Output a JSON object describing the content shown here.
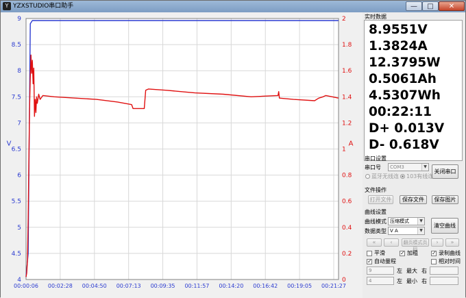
{
  "window": {
    "title": "YZXSTUDIO串口助手",
    "icon": "app-logo-icon",
    "minimize": "—",
    "maximize": "□",
    "close": "✕"
  },
  "realtime": {
    "section_title": "实时数据",
    "lines": [
      "8.9551V",
      "1.3824A",
      "12.3795W",
      "0.5061Ah",
      "4.5307Wh",
      "00:22:11",
      "D+  0.013V",
      "D-   0.618V"
    ]
  },
  "serial": {
    "section_title": "串口设置",
    "port_label": "串口号",
    "port_value": "COM3",
    "close_button": "关闭串口",
    "radio_bt": "蓝牙无线连",
    "radio_103": "103有线连"
  },
  "file": {
    "section_title": "文件操作",
    "open": "打开文件",
    "save": "保存文件",
    "save_image": "保存图片"
  },
  "curve": {
    "section_title": "曲线设置",
    "mode_label": "曲线模式",
    "mode_value": "压缩模式",
    "type_label": "数据类型",
    "type_value": "V A",
    "clear_button": "清空曲线",
    "nav_first": "«",
    "nav_prev": "‹",
    "nav_page": "翻页模式页码",
    "nav_next": "›",
    "nav_last": "»",
    "smooth": "平滑",
    "bold": "加粗",
    "record": "录制曲线",
    "auto_range": "自动量程",
    "relative_time": "相对时间",
    "left_min_value": "9",
    "left_label": "左",
    "max_label": "最大",
    "right_label": "右",
    "left_max_value": "4",
    "min_label": "最小"
  },
  "chart_data": {
    "type": "line",
    "ylabel_left": "V",
    "ylabel_right": "A",
    "ylim_left": [
      4,
      9
    ],
    "ylim_right": [
      0,
      2
    ],
    "yticks_left": [
      "4",
      "4.5",
      "5",
      "5.5",
      "6",
      "6.5",
      "7",
      "7.5",
      "8",
      "8.5",
      "9"
    ],
    "yticks_right": [
      "0",
      "0.2",
      "0.4",
      "0.6",
      "0.8",
      "1",
      "1.2",
      "1.4",
      "1.6",
      "1.8",
      "2"
    ],
    "xticks": [
      "00:00:06",
      "00:02:28",
      "00:04:50",
      "00:07:13",
      "00:09:35",
      "00:11:57",
      "00:14:20",
      "00:16:42",
      "00:19:05",
      "00:21:27"
    ],
    "series": [
      {
        "axis": "left",
        "color": "#2a3ad0",
        "points": [
          [
            0,
            4.05
          ],
          [
            0.15,
            4.5
          ],
          [
            0.3,
            8.9
          ],
          [
            0.45,
            8.96
          ],
          [
            22.2,
            8.96
          ]
        ]
      },
      {
        "axis": "right",
        "color": "#e01010",
        "points": [
          [
            0,
            0.02
          ],
          [
            0.05,
            0.05
          ],
          [
            0.1,
            0.15
          ],
          [
            0.15,
            0.45
          ],
          [
            0.2,
            0.9
          ],
          [
            0.25,
            1.3
          ],
          [
            0.3,
            1.55
          ],
          [
            0.35,
            1.72
          ],
          [
            0.4,
            1.58
          ],
          [
            0.45,
            1.68
          ],
          [
            0.5,
            1.5
          ],
          [
            0.55,
            1.62
          ],
          [
            0.6,
            1.25
          ],
          [
            0.65,
            1.38
          ],
          [
            0.7,
            1.28
          ],
          [
            0.75,
            1.4
          ],
          [
            0.8,
            1.35
          ],
          [
            0.9,
            1.42
          ],
          [
            1.0,
            1.38
          ],
          [
            1.2,
            1.41
          ],
          [
            2.0,
            1.4
          ],
          [
            3.5,
            1.39
          ],
          [
            5.0,
            1.38
          ],
          [
            6.5,
            1.36
          ],
          [
            7.5,
            1.34
          ],
          [
            7.6,
            1.31
          ],
          [
            8.4,
            1.31
          ],
          [
            8.5,
            1.45
          ],
          [
            8.7,
            1.46
          ],
          [
            10.0,
            1.45
          ],
          [
            12.0,
            1.43
          ],
          [
            14.0,
            1.42
          ],
          [
            16.0,
            1.4
          ],
          [
            17.9,
            1.41
          ],
          [
            17.95,
            1.44
          ],
          [
            18.0,
            1.39
          ],
          [
            19.0,
            1.38
          ],
          [
            20.5,
            1.37
          ],
          [
            20.8,
            1.39
          ],
          [
            21.1,
            1.4
          ],
          [
            21.3,
            1.41
          ],
          [
            22.2,
            1.39
          ]
        ]
      }
    ],
    "x_range_min": [
      0,
      22.2
    ]
  }
}
